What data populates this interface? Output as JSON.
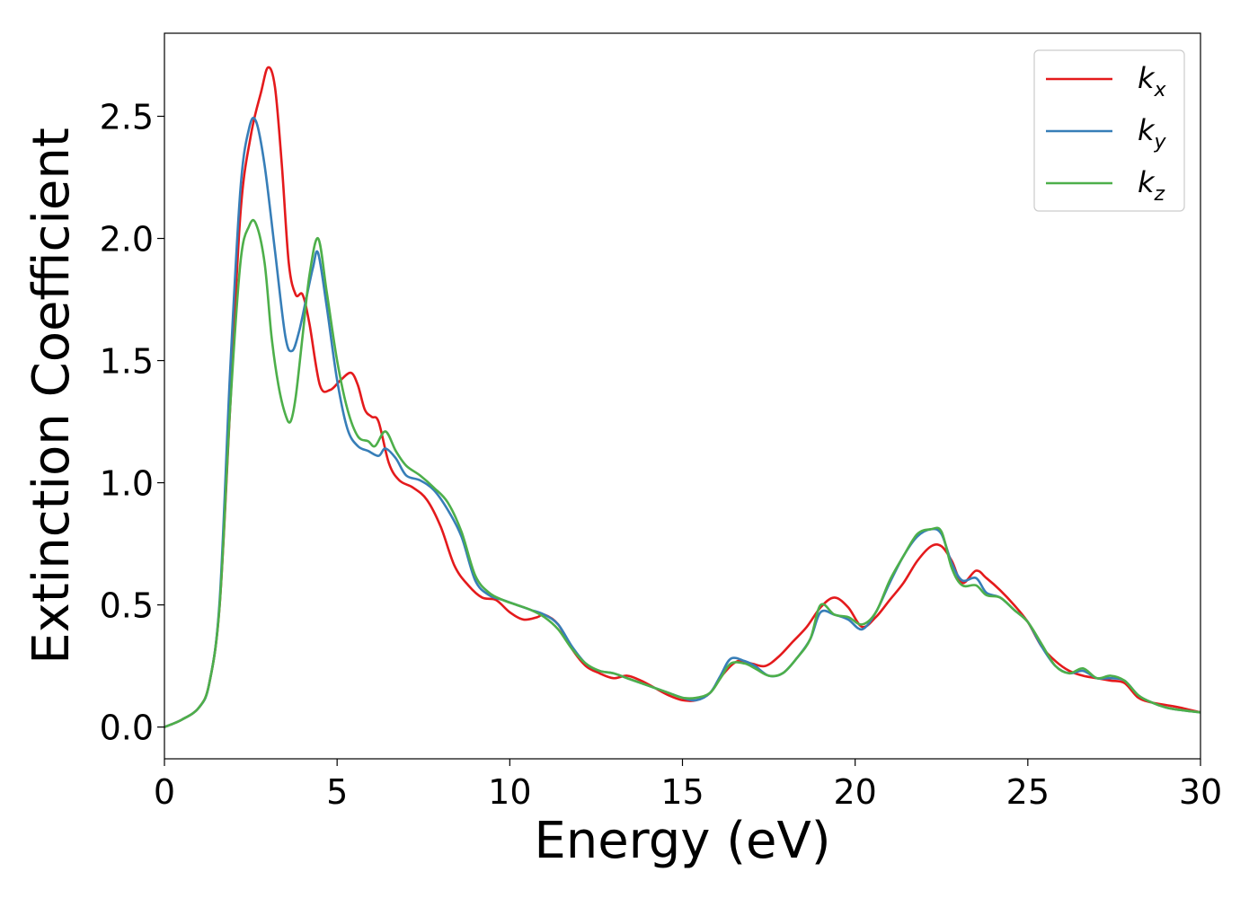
{
  "chart_data": {
    "type": "line",
    "xlabel": "Energy (eV)",
    "ylabel": "Extinction Coefficient",
    "xlim": [
      0,
      30
    ],
    "ylim": [
      -0.13,
      2.84
    ],
    "xticks": [
      0,
      5,
      10,
      15,
      20,
      25,
      30
    ],
    "xtick_labels": [
      "0",
      "5",
      "10",
      "15",
      "20",
      "25",
      "30"
    ],
    "yticks": [
      0.0,
      0.5,
      1.0,
      1.5,
      2.0,
      2.5
    ],
    "ytick_labels": [
      "0.0",
      "0.5",
      "1.0",
      "1.5",
      "2.0",
      "2.5"
    ],
    "grid": false,
    "legend_position": "top-right",
    "series": [
      {
        "name": "k_x",
        "label_main": "k",
        "label_sub": "x",
        "color": "#e41a1c",
        "x": [
          0,
          0.5,
          1.0,
          1.3,
          1.6,
          1.9,
          2.2,
          2.5,
          2.8,
          3.0,
          3.2,
          3.4,
          3.6,
          3.8,
          4.0,
          4.2,
          4.5,
          4.8,
          5.1,
          5.4,
          5.6,
          5.8,
          6.0,
          6.2,
          6.5,
          6.8,
          7.2,
          7.6,
          8.0,
          8.4,
          8.8,
          9.2,
          9.6,
          10.0,
          10.4,
          10.8,
          11.0,
          11.4,
          11.8,
          12.2,
          12.6,
          13.0,
          13.4,
          13.8,
          14.2,
          14.6,
          15.0,
          15.4,
          15.8,
          16.2,
          16.6,
          17.0,
          17.4,
          17.8,
          18.2,
          18.6,
          19.0,
          19.4,
          19.8,
          20.2,
          20.6,
          21.0,
          21.4,
          21.8,
          22.2,
          22.5,
          22.8,
          23.1,
          23.5,
          23.8,
          24.2,
          24.6,
          25.0,
          25.4,
          25.8,
          26.2,
          26.6,
          27.0,
          27.4,
          27.8,
          28.2,
          28.6,
          29.0,
          29.4,
          30.0
        ],
        "y": [
          0.0,
          0.03,
          0.08,
          0.18,
          0.5,
          1.3,
          2.1,
          2.42,
          2.6,
          2.7,
          2.62,
          2.3,
          1.9,
          1.77,
          1.77,
          1.65,
          1.4,
          1.38,
          1.42,
          1.45,
          1.4,
          1.3,
          1.27,
          1.25,
          1.08,
          1.01,
          0.98,
          0.93,
          0.82,
          0.66,
          0.58,
          0.53,
          0.52,
          0.47,
          0.44,
          0.45,
          0.46,
          0.42,
          0.32,
          0.25,
          0.22,
          0.2,
          0.21,
          0.19,
          0.16,
          0.13,
          0.11,
          0.11,
          0.14,
          0.22,
          0.27,
          0.26,
          0.25,
          0.29,
          0.35,
          0.41,
          0.49,
          0.53,
          0.49,
          0.41,
          0.45,
          0.52,
          0.59,
          0.68,
          0.74,
          0.74,
          0.68,
          0.59,
          0.64,
          0.61,
          0.56,
          0.5,
          0.43,
          0.33,
          0.27,
          0.23,
          0.21,
          0.2,
          0.19,
          0.18,
          0.12,
          0.1,
          0.09,
          0.08,
          0.06
        ]
      },
      {
        "name": "k_y",
        "label_main": "k",
        "label_sub": "y",
        "color": "#377eb8",
        "x": [
          0,
          0.5,
          1.0,
          1.3,
          1.6,
          1.9,
          2.2,
          2.45,
          2.65,
          2.9,
          3.2,
          3.5,
          3.7,
          3.9,
          4.1,
          4.3,
          4.45,
          4.7,
          5.0,
          5.3,
          5.6,
          5.9,
          6.2,
          6.4,
          6.7,
          7.0,
          7.4,
          7.8,
          8.2,
          8.6,
          9.0,
          9.4,
          9.8,
          10.2,
          10.6,
          11.0,
          11.4,
          11.8,
          12.2,
          12.6,
          13.0,
          13.4,
          13.8,
          14.2,
          14.6,
          15.0,
          15.4,
          15.8,
          16.1,
          16.4,
          16.8,
          17.1,
          17.5,
          17.9,
          18.3,
          18.7,
          19.0,
          19.4,
          19.8,
          20.2,
          20.6,
          21.0,
          21.4,
          21.8,
          22.2,
          22.5,
          22.8,
          23.1,
          23.5,
          23.8,
          24.2,
          24.6,
          25.0,
          25.4,
          25.8,
          26.2,
          26.6,
          27.0,
          27.4,
          27.8,
          28.2,
          28.6,
          29.0,
          29.4,
          30.0
        ],
        "y": [
          0.0,
          0.03,
          0.08,
          0.18,
          0.52,
          1.45,
          2.2,
          2.45,
          2.48,
          2.3,
          1.95,
          1.6,
          1.54,
          1.62,
          1.75,
          1.88,
          1.94,
          1.72,
          1.42,
          1.22,
          1.15,
          1.13,
          1.11,
          1.14,
          1.1,
          1.03,
          1.01,
          0.97,
          0.89,
          0.78,
          0.6,
          0.54,
          0.52,
          0.5,
          0.48,
          0.46,
          0.42,
          0.33,
          0.26,
          0.23,
          0.22,
          0.2,
          0.18,
          0.16,
          0.14,
          0.12,
          0.11,
          0.14,
          0.21,
          0.28,
          0.27,
          0.25,
          0.21,
          0.22,
          0.28,
          0.36,
          0.47,
          0.46,
          0.44,
          0.4,
          0.47,
          0.59,
          0.7,
          0.78,
          0.81,
          0.79,
          0.67,
          0.6,
          0.61,
          0.55,
          0.53,
          0.48,
          0.43,
          0.33,
          0.25,
          0.22,
          0.23,
          0.2,
          0.2,
          0.19,
          0.13,
          0.1,
          0.08,
          0.07,
          0.06
        ]
      },
      {
        "name": "k_z",
        "label_main": "k",
        "label_sub": "z",
        "color": "#4daf4a",
        "x": [
          0,
          0.5,
          1.0,
          1.3,
          1.6,
          1.9,
          2.2,
          2.45,
          2.65,
          2.9,
          3.1,
          3.3,
          3.5,
          3.65,
          3.8,
          4.0,
          4.2,
          4.45,
          4.7,
          5.0,
          5.3,
          5.6,
          5.9,
          6.1,
          6.4,
          6.7,
          7.0,
          7.4,
          7.8,
          8.2,
          8.6,
          9.0,
          9.4,
          9.8,
          10.2,
          10.6,
          11.0,
          11.4,
          11.8,
          12.2,
          12.6,
          13.0,
          13.4,
          13.8,
          14.2,
          14.6,
          15.0,
          15.4,
          15.8,
          16.1,
          16.4,
          16.8,
          17.1,
          17.5,
          17.9,
          18.3,
          18.7,
          19.0,
          19.4,
          19.8,
          20.2,
          20.6,
          21.0,
          21.4,
          21.8,
          22.2,
          22.5,
          22.8,
          23.1,
          23.5,
          23.8,
          24.2,
          24.6,
          25.0,
          25.4,
          25.8,
          26.2,
          26.6,
          27.0,
          27.4,
          27.8,
          28.2,
          28.6,
          29.0,
          29.4,
          30.0
        ],
        "y": [
          0.0,
          0.03,
          0.08,
          0.18,
          0.5,
          1.3,
          1.9,
          2.05,
          2.06,
          1.9,
          1.6,
          1.4,
          1.28,
          1.25,
          1.35,
          1.6,
          1.85,
          2.0,
          1.78,
          1.5,
          1.3,
          1.19,
          1.17,
          1.15,
          1.21,
          1.13,
          1.07,
          1.03,
          0.98,
          0.92,
          0.8,
          0.62,
          0.55,
          0.52,
          0.5,
          0.48,
          0.45,
          0.4,
          0.32,
          0.26,
          0.23,
          0.22,
          0.2,
          0.18,
          0.16,
          0.14,
          0.12,
          0.12,
          0.14,
          0.2,
          0.26,
          0.26,
          0.24,
          0.21,
          0.22,
          0.28,
          0.36,
          0.5,
          0.46,
          0.45,
          0.42,
          0.47,
          0.6,
          0.7,
          0.79,
          0.81,
          0.8,
          0.65,
          0.58,
          0.58,
          0.54,
          0.53,
          0.48,
          0.43,
          0.34,
          0.25,
          0.22,
          0.24,
          0.2,
          0.21,
          0.19,
          0.13,
          0.1,
          0.08,
          0.07,
          0.06
        ]
      }
    ]
  }
}
